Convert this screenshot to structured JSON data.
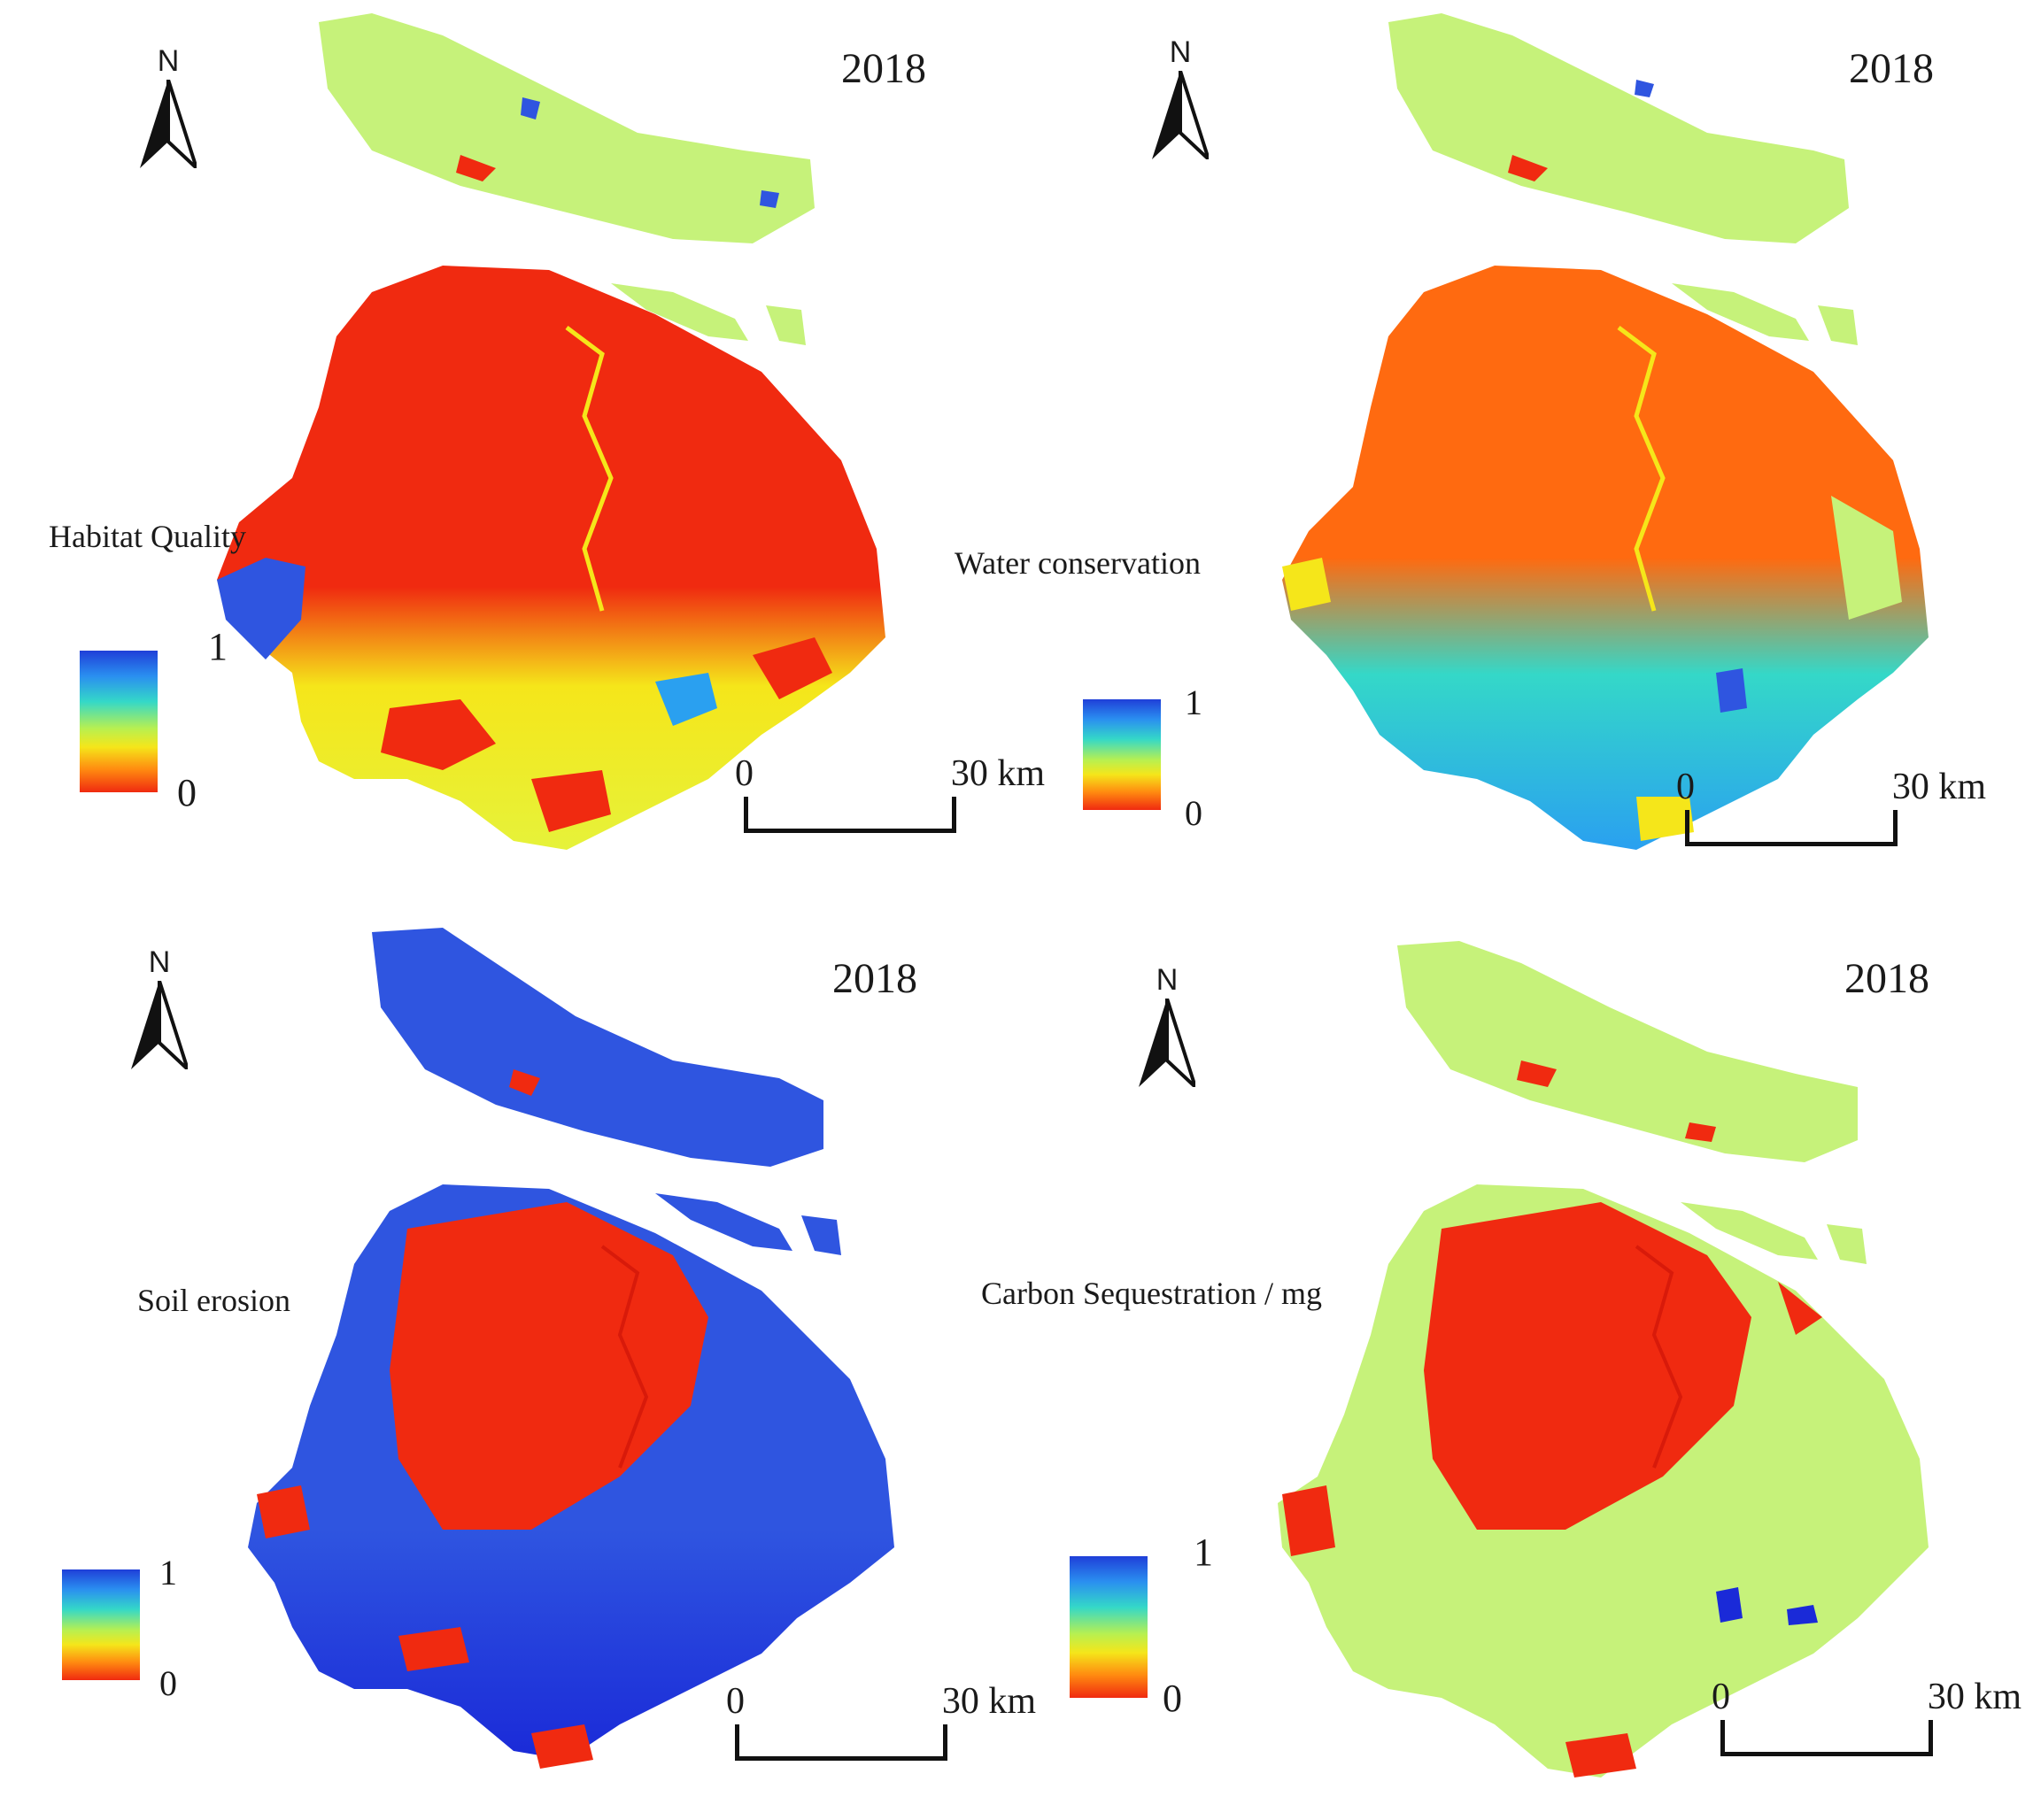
{
  "figure": {
    "year": "2018",
    "north_label": "N",
    "scale_start": "0",
    "scale_end": "30 km",
    "legend_max": "1",
    "legend_min": "0"
  },
  "panels": [
    {
      "title": "Habitat Quality",
      "scheme": "habitat"
    },
    {
      "title": "Water conservation",
      "scheme": "water"
    },
    {
      "title": "Soil erosion",
      "scheme": "soil"
    },
    {
      "title": "Carbon Sequestration / mg",
      "scheme": "carbon"
    }
  ],
  "colors": {
    "red": "#f02a10",
    "orange": "#ff6a10",
    "yellow": "#f5e61a",
    "light_green": "#c6f27a",
    "cyan": "#34d8c8",
    "sky": "#2aa0f0",
    "blue": "#2f55e0",
    "deep_blue": "#1a2ad8"
  }
}
